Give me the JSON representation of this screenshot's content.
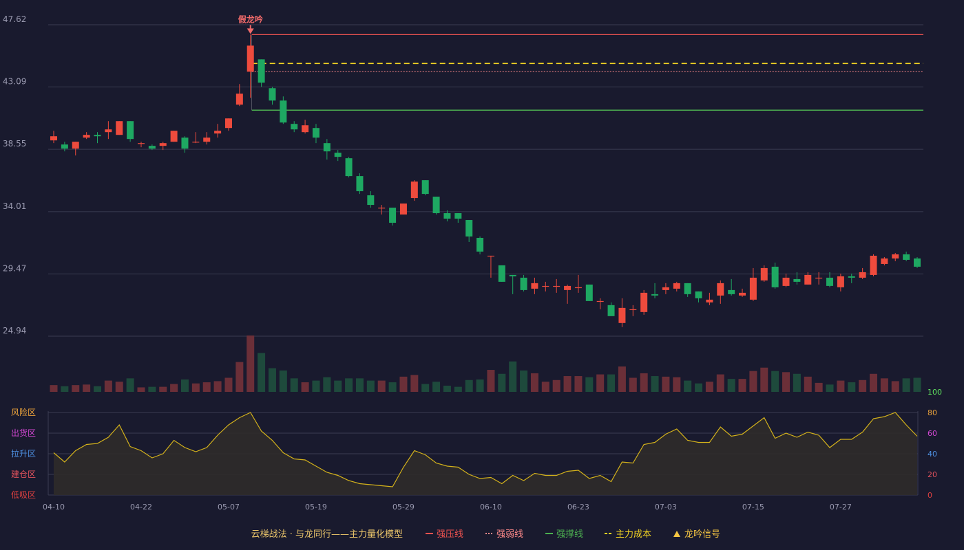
{
  "chart_data": {
    "type": "candlestick",
    "price_axis": {
      "ticks": [
        "47.62",
        "43.09",
        "38.55",
        "34.01",
        "29.47",
        "24.94"
      ],
      "ylim": [
        24.94,
        47.62
      ]
    },
    "x_labels": [
      "04-10",
      "04-22",
      "05-07",
      "05-19",
      "05-29",
      "06-10",
      "06-23",
      "07-03",
      "07-15",
      "07-27"
    ],
    "colors": {
      "up": "#ee4b3d",
      "down": "#1ea862",
      "vol_up": "#6b2f38",
      "vol_down": "#1e4a3c",
      "resist": "#ef5350",
      "weak": "#ff8a8a",
      "support": "#4caf50",
      "cost": "#f5d623",
      "osc_line": "#d4b21b",
      "osc_fill": "#2f2b2a"
    },
    "candles": [
      [
        39.2,
        39.5,
        39.9,
        39.0
      ],
      [
        38.9,
        38.6,
        39.1,
        38.4
      ],
      [
        38.6,
        39.1,
        39.1,
        38.1
      ],
      [
        39.4,
        39.6,
        39.8,
        39.3
      ],
      [
        39.6,
        39.5,
        39.8,
        39.0
      ],
      [
        39.8,
        40.0,
        40.6,
        39.3
      ],
      [
        39.6,
        40.6,
        40.6,
        39.6
      ],
      [
        40.6,
        39.3,
        40.6,
        39.1
      ],
      [
        39.0,
        39.0,
        39.1,
        38.7
      ],
      [
        38.8,
        38.6,
        38.9,
        38.5
      ],
      [
        38.8,
        39.0,
        39.1,
        38.5
      ],
      [
        39.1,
        39.9,
        39.9,
        39.1
      ],
      [
        39.4,
        38.6,
        39.5,
        38.3
      ],
      [
        39.1,
        39.1,
        39.8,
        39.0
      ],
      [
        39.1,
        39.4,
        39.8,
        38.9
      ],
      [
        39.7,
        39.9,
        40.4,
        39.4
      ],
      [
        40.1,
        40.8,
        40.8,
        39.9
      ],
      [
        41.8,
        42.6,
        43.3,
        41.7
      ],
      [
        44.2,
        46.1,
        46.9,
        42.3
      ],
      [
        45.1,
        43.4,
        45.1,
        43.1
      ],
      [
        43.0,
        42.1,
        43.1,
        41.8
      ],
      [
        42.1,
        40.5,
        42.4,
        40.4
      ],
      [
        40.4,
        40.0,
        40.6,
        39.8
      ],
      [
        39.8,
        40.3,
        40.7,
        39.7
      ],
      [
        40.1,
        39.4,
        40.4,
        39.0
      ],
      [
        39.0,
        38.4,
        39.3,
        37.8
      ],
      [
        38.3,
        38.0,
        38.5,
        37.7
      ],
      [
        37.9,
        36.6,
        38.0,
        36.5
      ],
      [
        36.6,
        35.5,
        36.8,
        35.3
      ],
      [
        35.2,
        34.5,
        35.5,
        34.3
      ],
      [
        34.3,
        34.3,
        34.5,
        33.8
      ],
      [
        34.3,
        33.2,
        34.3,
        33.0
      ],
      [
        33.8,
        34.6,
        34.6,
        33.8
      ],
      [
        35.0,
        36.2,
        36.3,
        34.8
      ],
      [
        36.3,
        35.3,
        36.3,
        35.2
      ],
      [
        35.1,
        33.9,
        35.1,
        33.8
      ],
      [
        33.9,
        33.5,
        34.1,
        33.3
      ],
      [
        33.9,
        33.5,
        33.9,
        33.2
      ],
      [
        33.4,
        32.2,
        33.4,
        31.8
      ],
      [
        32.1,
        31.1,
        32.2,
        30.9
      ],
      [
        30.8,
        30.8,
        30.8,
        29.2
      ],
      [
        30.1,
        28.9,
        30.1,
        28.9
      ],
      [
        29.4,
        29.3,
        29.4,
        28.0
      ],
      [
        29.2,
        28.3,
        29.4,
        28.2
      ],
      [
        28.4,
        28.8,
        29.2,
        28.0
      ],
      [
        28.6,
        28.6,
        28.9,
        28.2
      ],
      [
        28.6,
        28.6,
        29.1,
        28.1
      ],
      [
        28.3,
        28.6,
        28.7,
        27.3
      ],
      [
        28.5,
        28.5,
        29.4,
        28.1
      ],
      [
        28.7,
        27.5,
        28.7,
        27.5
      ],
      [
        27.5,
        27.5,
        27.7,
        26.9
      ],
      [
        27.2,
        26.4,
        27.4,
        26.4
      ],
      [
        25.9,
        27.0,
        27.7,
        25.6
      ],
      [
        26.9,
        26.9,
        27.2,
        26.4
      ],
      [
        26.7,
        28.1,
        28.3,
        26.5
      ],
      [
        28.0,
        27.9,
        28.8,
        27.7
      ],
      [
        28.3,
        28.5,
        28.8,
        28.0
      ],
      [
        28.4,
        28.8,
        28.9,
        28.2
      ],
      [
        28.8,
        28.0,
        28.8,
        27.8
      ],
      [
        28.2,
        27.7,
        28.2,
        27.4
      ],
      [
        27.4,
        27.6,
        28.1,
        27.2
      ],
      [
        27.9,
        28.8,
        29.0,
        27.3
      ],
      [
        28.3,
        28.0,
        29.1,
        27.9
      ],
      [
        27.9,
        28.1,
        28.4,
        27.8
      ],
      [
        27.6,
        29.2,
        29.9,
        27.5
      ],
      [
        29.0,
        29.9,
        30.1,
        28.9
      ],
      [
        30.0,
        28.5,
        30.3,
        28.4
      ],
      [
        28.6,
        29.2,
        29.5,
        28.5
      ],
      [
        29.1,
        28.9,
        29.6,
        28.7
      ],
      [
        28.7,
        29.4,
        29.6,
        28.7
      ],
      [
        29.2,
        29.2,
        29.6,
        28.7
      ],
      [
        29.2,
        28.6,
        29.6,
        28.5
      ],
      [
        28.5,
        29.3,
        29.5,
        28.2
      ],
      [
        29.3,
        29.2,
        29.5,
        28.8
      ],
      [
        29.2,
        29.6,
        29.9,
        29.1
      ],
      [
        29.4,
        30.8,
        30.9,
        29.3
      ],
      [
        30.2,
        30.6,
        30.7,
        30.1
      ],
      [
        30.6,
        30.9,
        31.0,
        30.4
      ],
      [
        30.9,
        30.5,
        31.1,
        30.4
      ],
      [
        30.6,
        30.0,
        30.7,
        29.9
      ]
    ],
    "volume": [
      1.2,
      1.0,
      1.2,
      1.3,
      1.0,
      2.0,
      1.8,
      2.4,
      0.8,
      0.9,
      0.9,
      1.4,
      2.2,
      1.5,
      1.7,
      1.9,
      2.5,
      5.3,
      10.0,
      6.9,
      4.2,
      3.8,
      2.4,
      1.7,
      2.0,
      2.6,
      2.0,
      2.4,
      2.4,
      2.0,
      2.0,
      1.7,
      2.7,
      3.0,
      1.4,
      1.8,
      1.1,
      0.9,
      2.1,
      2.2,
      3.9,
      3.2,
      5.4,
      3.8,
      3.3,
      1.8,
      2.1,
      2.8,
      2.8,
      2.6,
      3.1,
      3.1,
      4.5,
      2.5,
      3.3,
      2.8,
      2.7,
      2.6,
      2.0,
      1.5,
      1.8,
      3.1,
      2.3,
      2.3,
      3.7,
      4.3,
      3.7,
      3.5,
      3.2,
      2.7,
      1.6,
      1.3,
      2.0,
      1.7,
      2.1,
      3.2,
      2.4,
      1.9,
      2.4,
      2.5
    ],
    "oscillator": [
      41,
      32,
      43,
      49,
      50,
      56,
      68,
      47,
      43,
      36,
      40,
      53,
      46,
      42,
      46,
      58,
      68,
      75,
      80,
      62,
      53,
      41,
      35,
      34,
      28,
      22,
      19,
      14,
      11,
      10,
      9,
      8,
      27,
      43,
      39,
      31,
      28,
      27,
      20,
      16,
      17,
      11,
      19,
      14,
      21,
      19,
      19,
      23,
      24,
      16,
      19,
      13,
      32,
      31,
      49,
      51,
      59,
      64,
      53,
      51,
      51,
      66,
      57,
      59,
      67,
      75,
      55,
      60,
      56,
      61,
      58,
      46,
      54,
      54,
      61,
      74,
      76,
      80,
      68,
      57
    ],
    "levels": {
      "resist": 46.9,
      "weak": 44.2,
      "support": 41.4,
      "cost": 44.8,
      "start_index": 18
    },
    "signal": {
      "index": 18,
      "label": "假龙吟"
    },
    "volume_axis_label": "100",
    "oscillator_axis": {
      "ticks": [
        "80",
        "60",
        "40",
        "20",
        "0"
      ],
      "tick_colors": [
        "#e9a13b",
        "#d347d3",
        "#4d8fe0",
        "#e0515c",
        "#e04040"
      ],
      "zones": [
        "风险区",
        "出货区",
        "拉升区",
        "建仓区",
        "低吸区"
      ],
      "zone_colors": [
        "#e9a13b",
        "#d347d3",
        "#4d8fe0",
        "#e0515c",
        "#e04040"
      ],
      "ylim": [
        0,
        80
      ]
    },
    "legend": {
      "title": "云梯战法 · 与龙同行——主力量化模型",
      "items": [
        {
          "label": "强压线",
          "style": "solid",
          "color": "#ef5350"
        },
        {
          "label": "强弱线",
          "style": "dotted",
          "color": "#ff8a8a"
        },
        {
          "label": "强撑线",
          "style": "solid",
          "color": "#4caf50"
        },
        {
          "label": "主力成本",
          "style": "dashed",
          "color": "#f5d623"
        },
        {
          "label": "龙吟信号",
          "style": "triangle",
          "color": "#f5c542"
        }
      ]
    }
  }
}
